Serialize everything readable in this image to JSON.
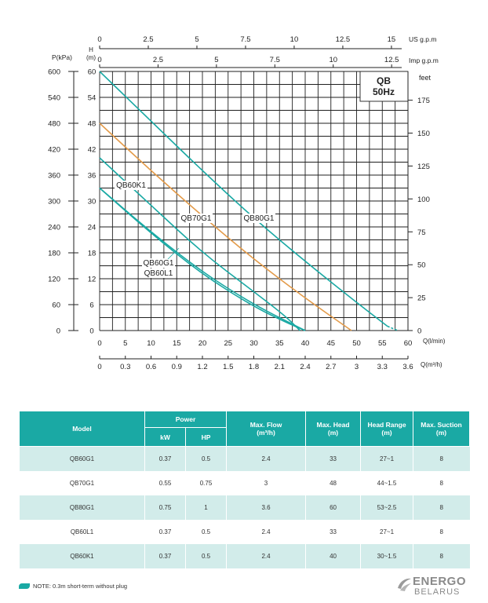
{
  "chart_data": {
    "type": "line",
    "badge": {
      "model": "QB",
      "freq": "50Hz"
    },
    "x_primary": {
      "label": "Q(l/min)",
      "range": [
        0,
        60
      ],
      "ticks": [
        0,
        5,
        10,
        15,
        20,
        25,
        30,
        35,
        40,
        45,
        50,
        55,
        60
      ]
    },
    "x_m3h": {
      "label": "Q(m³/h)",
      "range": [
        0,
        3.6
      ],
      "ticks": [
        "0",
        "0.3",
        "0.6",
        "0.9",
        "1.2",
        "1.5",
        "1.8",
        "2.1",
        "2.4",
        "2.7",
        "3",
        "3.3",
        "3.6"
      ]
    },
    "x_us": {
      "label": "US  g.p.m",
      "range": [
        0,
        15.85
      ],
      "ticks": [
        "0",
        "2.5",
        "5",
        "7.5",
        "10",
        "12.5",
        "15"
      ]
    },
    "x_imp": {
      "label": "Imp  g.p.m",
      "range": [
        0,
        13.2
      ],
      "ticks": [
        "0",
        "2.5",
        "5",
        "7.5",
        "10",
        "12.5"
      ]
    },
    "y_head": {
      "label": "H\n(m)",
      "range": [
        0,
        60
      ],
      "ticks": [
        0,
        6,
        12,
        18,
        24,
        30,
        36,
        42,
        48,
        54,
        60
      ]
    },
    "y_kpa": {
      "label": "P(kPa)",
      "ticks": [
        0,
        60,
        120,
        180,
        240,
        300,
        360,
        420,
        480,
        540,
        600
      ]
    },
    "y_feet": {
      "label": "feet",
      "max_at_60m": 196.85,
      "ticks": [
        0,
        25,
        50,
        75,
        100,
        125,
        150,
        175
      ]
    },
    "series": [
      {
        "name": "QB60K1",
        "color": "#1aa9a4",
        "dashed_tail": false,
        "x": [
          0,
          10,
          20,
          30,
          36,
          39
        ],
        "y": [
          40,
          29,
          18,
          9,
          3.5,
          0
        ]
      },
      {
        "name": "QB70G1",
        "color": "#e39b4a",
        "dashed_tail": false,
        "x": [
          0,
          10,
          20,
          30,
          40,
          49
        ],
        "y": [
          48,
          37,
          26.5,
          16.5,
          7.5,
          0
        ]
      },
      {
        "name": "QB80G1",
        "color": "#1aa9a4",
        "dashed_tail": true,
        "x": [
          0,
          10,
          20,
          30,
          40,
          50,
          56,
          58
        ],
        "y": [
          60,
          48.5,
          37,
          26,
          16,
          6.5,
          1,
          0
        ]
      },
      {
        "name": "QB60G1",
        "color": "#1aa9a4",
        "dashed_tail": false,
        "x": [
          0,
          10,
          20,
          30,
          37,
          40
        ],
        "y": [
          33,
          22.5,
          13,
          5.5,
          1.5,
          0
        ]
      },
      {
        "name": "QB60L1",
        "color": "#1aa9a4",
        "dashed_tail": false,
        "x": [
          0,
          10,
          20,
          30,
          38,
          40
        ],
        "y": [
          33,
          22.8,
          13.5,
          6,
          1.2,
          0
        ]
      }
    ],
    "curve_labels": [
      "QB60K1",
      "QB70G1",
      "QB80G1",
      "QB60G1",
      "QB60L1"
    ]
  },
  "table": {
    "headers": {
      "model": "Model",
      "power": "Power",
      "kw": "kW",
      "hp": "HP",
      "max_flow": "Max. Flow\n(m³/h)",
      "max_head": "Max. Head\n(m)",
      "head_range": "Head Range\n(m)",
      "max_suction": "Max. Suction\n(m)"
    },
    "rows": [
      {
        "model": "QB60G1",
        "kw": "0.37",
        "hp": "0.5",
        "flow": "2.4",
        "head": "33",
        "range": "27~1",
        "suction": "8"
      },
      {
        "model": "QB70G1",
        "kw": "0.55",
        "hp": "0.75",
        "flow": "3",
        "head": "48",
        "range": "44~1.5",
        "suction": "8"
      },
      {
        "model": "QB80G1",
        "kw": "0.75",
        "hp": "1",
        "flow": "3.6",
        "head": "60",
        "range": "53~2.5",
        "suction": "8"
      },
      {
        "model": "QB60L1",
        "kw": "0.37",
        "hp": "0.5",
        "flow": "2.4",
        "head": "33",
        "range": "27~1",
        "suction": "8"
      },
      {
        "model": "QB60K1",
        "kw": "0.37",
        "hp": "0.5",
        "flow": "2.4",
        "head": "40",
        "range": "30~1.5",
        "suction": "8"
      }
    ]
  },
  "note": "NOTE: 0.3m short-term without plug",
  "logo": {
    "line1": "ENERGO",
    "line2": "BELARUS"
  },
  "colors": {
    "teal": "#1aa9a4",
    "orange": "#e39b4a",
    "row_shade": "#d2ecea"
  }
}
